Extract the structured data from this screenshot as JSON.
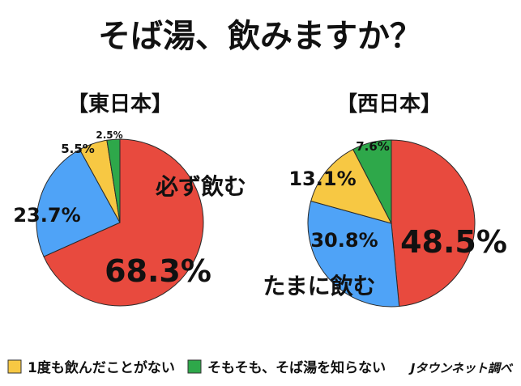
{
  "chart_data": [
    {
      "type": "pie",
      "region_label": "【東日本】",
      "slices": [
        {
          "name": "必ず飲む",
          "value": 68.3,
          "label": "68.3%",
          "color": "#e84a3e"
        },
        {
          "name": "たまに飲む",
          "value": 23.7,
          "label": "23.7%",
          "color": "#4fa3f7"
        },
        {
          "name": "1度も飲んだことがない",
          "value": 5.5,
          "label": "5.5%",
          "color": "#f7c843"
        },
        {
          "name": "そもそも、そば湯を知らない",
          "value": 2.5,
          "label": "2.5%",
          "color": "#2ea84a"
        }
      ],
      "annotation": "必ず飲む"
    },
    {
      "type": "pie",
      "region_label": "【西日本】",
      "slices": [
        {
          "name": "必ず飲む",
          "value": 48.5,
          "label": "48.5%",
          "color": "#e84a3e"
        },
        {
          "name": "たまに飲む",
          "value": 30.8,
          "label": "30.8%",
          "color": "#4fa3f7"
        },
        {
          "name": "1度も飲んだことがない",
          "value": 13.1,
          "label": "13.1%",
          "color": "#f7c843"
        },
        {
          "name": "そもそも、そば湯を知らない",
          "value": 7.6,
          "label": "7.6%",
          "color": "#2ea84a"
        }
      ],
      "annotation": "たまに飲む"
    }
  ],
  "title": "そば湯、飲みますか？",
  "legend": [
    {
      "label": "1度も飲んだことがない",
      "color": "#f7c843"
    },
    {
      "label": "そもそも、そば湯を知らない",
      "color": "#2ea84a"
    }
  ],
  "source": "Jタウンネット調べ"
}
